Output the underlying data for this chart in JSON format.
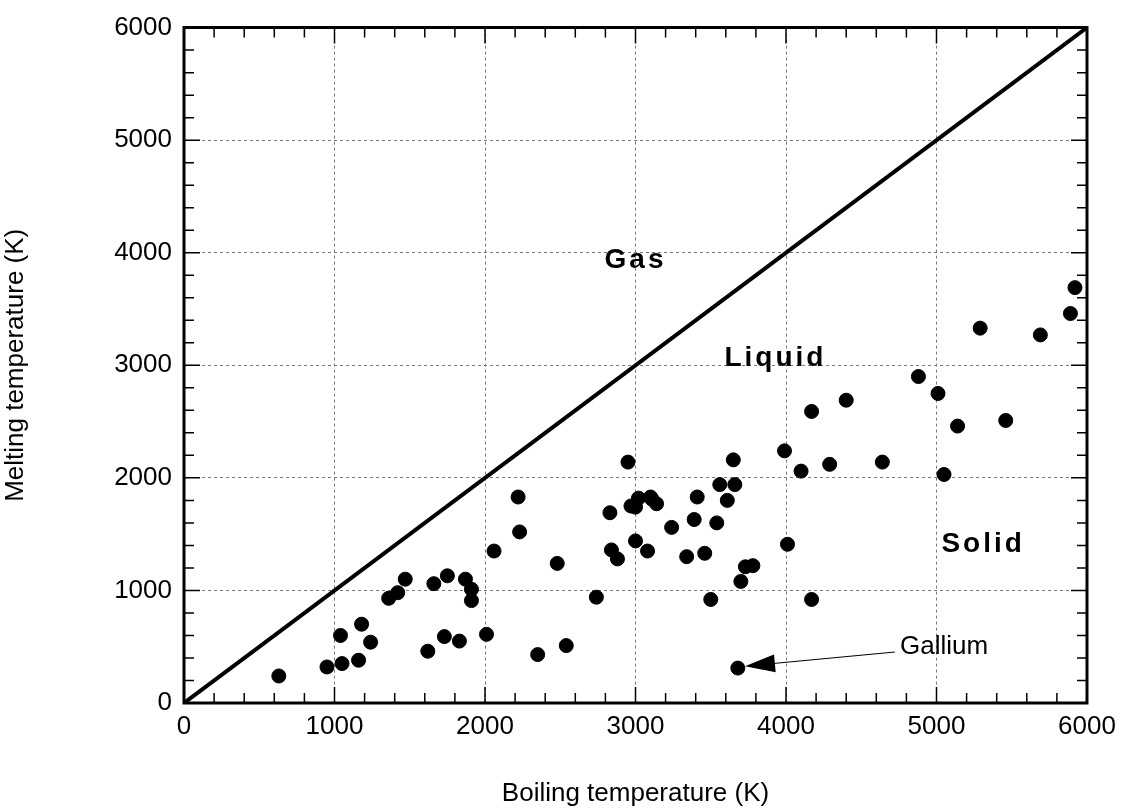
{
  "chart_data": {
    "type": "scatter",
    "xlabel": "Boiling temperature (K)",
    "ylabel": "Melting temperature (K)",
    "xlim": [
      0,
      6000
    ],
    "ylim": [
      0,
      6000
    ],
    "xticks": [
      0,
      {
        "value": 200,
        "label": null
      },
      {
        "value": 400,
        "label": null
      },
      {
        "value": 600,
        "label": null
      },
      {
        "value": 800,
        "label": null
      },
      1000,
      {
        "value": 1200,
        "label": null
      },
      {
        "value": 1400,
        "label": null
      },
      {
        "value": 1600,
        "label": null
      },
      {
        "value": 1800,
        "label": null
      },
      2000,
      {
        "value": 2200,
        "label": null
      },
      {
        "value": 2400,
        "label": null
      },
      {
        "value": 2600,
        "label": null
      },
      {
        "value": 2800,
        "label": null
      },
      3000,
      {
        "value": 3200,
        "label": null
      },
      {
        "value": 3400,
        "label": null
      },
      {
        "value": 3600,
        "label": null
      },
      {
        "value": 3800,
        "label": null
      },
      4000,
      {
        "value": 4200,
        "label": null
      },
      {
        "value": 4400,
        "label": null
      },
      {
        "value": 4600,
        "label": null
      },
      {
        "value": 4800,
        "label": null
      },
      5000,
      {
        "value": 5200,
        "label": null
      },
      {
        "value": 5400,
        "label": null
      },
      {
        "value": 5600,
        "label": null
      },
      {
        "value": 5800,
        "label": null
      },
      6000
    ],
    "yticks": [
      0,
      {
        "value": 200,
        "label": null
      },
      {
        "value": 400,
        "label": null
      },
      {
        "value": 600,
        "label": null
      },
      {
        "value": 800,
        "label": null
      },
      1000,
      {
        "value": 1200,
        "label": null
      },
      {
        "value": 1400,
        "label": null
      },
      {
        "value": 1600,
        "label": null
      },
      {
        "value": 1800,
        "label": null
      },
      2000,
      {
        "value": 2200,
        "label": null
      },
      {
        "value": 2400,
        "label": null
      },
      {
        "value": 2600,
        "label": null
      },
      {
        "value": 2800,
        "label": null
      },
      3000,
      {
        "value": 3200,
        "label": null
      },
      {
        "value": 3400,
        "label": null
      },
      {
        "value": 3600,
        "label": null
      },
      {
        "value": 3800,
        "label": null
      },
      4000,
      {
        "value": 4200,
        "label": null
      },
      {
        "value": 4400,
        "label": null
      },
      {
        "value": 4600,
        "label": null
      },
      {
        "value": 4800,
        "label": null
      },
      5000,
      {
        "value": 5200,
        "label": null
      },
      {
        "value": 5400,
        "label": null
      },
      {
        "value": 5600,
        "label": null
      },
      {
        "value": 5800,
        "label": null
      },
      6000
    ],
    "grid": true,
    "series": [
      {
        "color": "#000000",
        "marker": "circle",
        "x": [
          630,
          950,
          1050,
          1160,
          1040,
          1180,
          1240,
          1360,
          1420,
          1470,
          1620,
          1660,
          1730,
          1750,
          1830,
          1870,
          1910,
          1910,
          2010,
          2060,
          2350,
          2220,
          2230,
          2480,
          2540,
          2740,
          2830,
          2840,
          2880,
          2950,
          2970,
          3000,
          3020,
          3000,
          3080,
          3100,
          3110,
          3140,
          3240,
          3340,
          3390,
          3410,
          3460,
          3500,
          3540,
          3560,
          3610,
          3650,
          3660,
          3680,
          3700,
          3730,
          3780,
          3990,
          4010,
          4100,
          4170,
          4170,
          4290,
          4400,
          4640,
          4880,
          5010,
          5050,
          5140,
          5460,
          5290,
          5690,
          5890,
          5920
        ],
        "values": [
          240,
          320,
          350,
          380,
          600,
          700,
          540,
          930,
          980,
          1100,
          460,
          1060,
          590,
          1130,
          550,
          1100,
          1010,
          910,
          610,
          1350,
          430,
          1830,
          1520,
          1240,
          510,
          940,
          1690,
          1360,
          1280,
          2140,
          1750,
          1740,
          1820,
          1440,
          1350,
          1830,
          1810,
          1770,
          1560,
          1300,
          1630,
          1830,
          1330,
          920,
          1600,
          1940,
          1800,
          2160,
          1940,
          310,
          1080,
          1210,
          1220,
          2240,
          1410,
          2060,
          2590,
          920,
          2120,
          2690,
          2140,
          2900,
          2750,
          2030,
          2460,
          2510,
          3330,
          3270,
          3460,
          3690
        ]
      },
      {
        "type": "line",
        "color": "#000000",
        "marker": "none",
        "line_style": "solid",
        "x": [
          0,
          6000
        ],
        "values": [
          0,
          6000
        ]
      }
    ],
    "annotations": [
      "Gas",
      "Liquid",
      "Solid",
      "Gallium"
    ]
  }
}
